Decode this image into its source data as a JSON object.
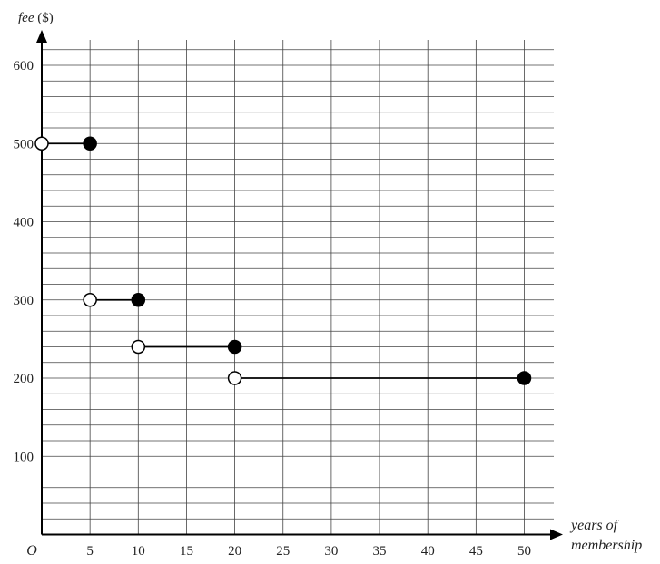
{
  "chart_data": {
    "type": "line",
    "subtype": "step",
    "ylabel": {
      "italic": "fee",
      "plain": " ($)"
    },
    "xlabel": [
      "years of",
      "membership"
    ],
    "origin_label": "O",
    "xlim": [
      0,
      53
    ],
    "ylim": [
      0,
      620
    ],
    "x_ticks": [
      5,
      10,
      15,
      20,
      25,
      30,
      35,
      40,
      45,
      50
    ],
    "y_ticks": [
      100,
      200,
      300,
      400,
      500,
      600
    ],
    "x_grid_step": 5,
    "y_grid_step": 20,
    "grid": true,
    "segments": [
      {
        "x_start": 0,
        "x_end": 5,
        "y": 500,
        "start_closed": false,
        "end_closed": true
      },
      {
        "x_start": 5,
        "x_end": 10,
        "y": 300,
        "start_closed": false,
        "end_closed": true
      },
      {
        "x_start": 10,
        "x_end": 20,
        "y": 240,
        "start_closed": false,
        "end_closed": true
      },
      {
        "x_start": 20,
        "x_end": 50,
        "y": 200,
        "start_closed": false,
        "end_closed": true
      }
    ]
  }
}
